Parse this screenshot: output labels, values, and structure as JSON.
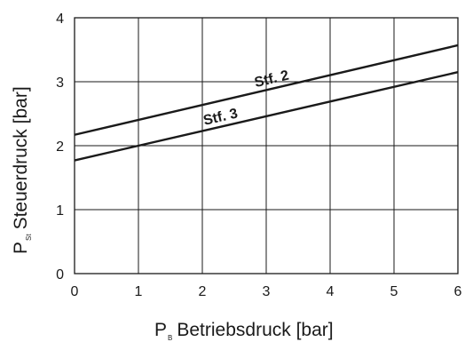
{
  "chart_data": {
    "type": "line",
    "xlim": [
      0,
      6
    ],
    "ylim": [
      0,
      4
    ],
    "x_ticks": [
      "0",
      "1",
      "2",
      "3",
      "4",
      "5",
      "6"
    ],
    "y_ticks": [
      "0",
      "1",
      "2",
      "3",
      "4"
    ],
    "grid": true,
    "xlabel": {
      "main": "P",
      "sub": "B",
      "text": "Betriebsdruck [bar]"
    },
    "ylabel": {
      "main": "P",
      "sub": "St",
      "text": "Steuerdruck [bar]"
    },
    "series": [
      {
        "name": "Stf. 2",
        "x": [
          0,
          6
        ],
        "y": [
          2.17,
          3.57
        ],
        "label_at": 3.1
      },
      {
        "name": "Stf. 3",
        "x": [
          0,
          6
        ],
        "y": [
          1.77,
          3.15
        ],
        "label_at": 2.3
      }
    ]
  }
}
